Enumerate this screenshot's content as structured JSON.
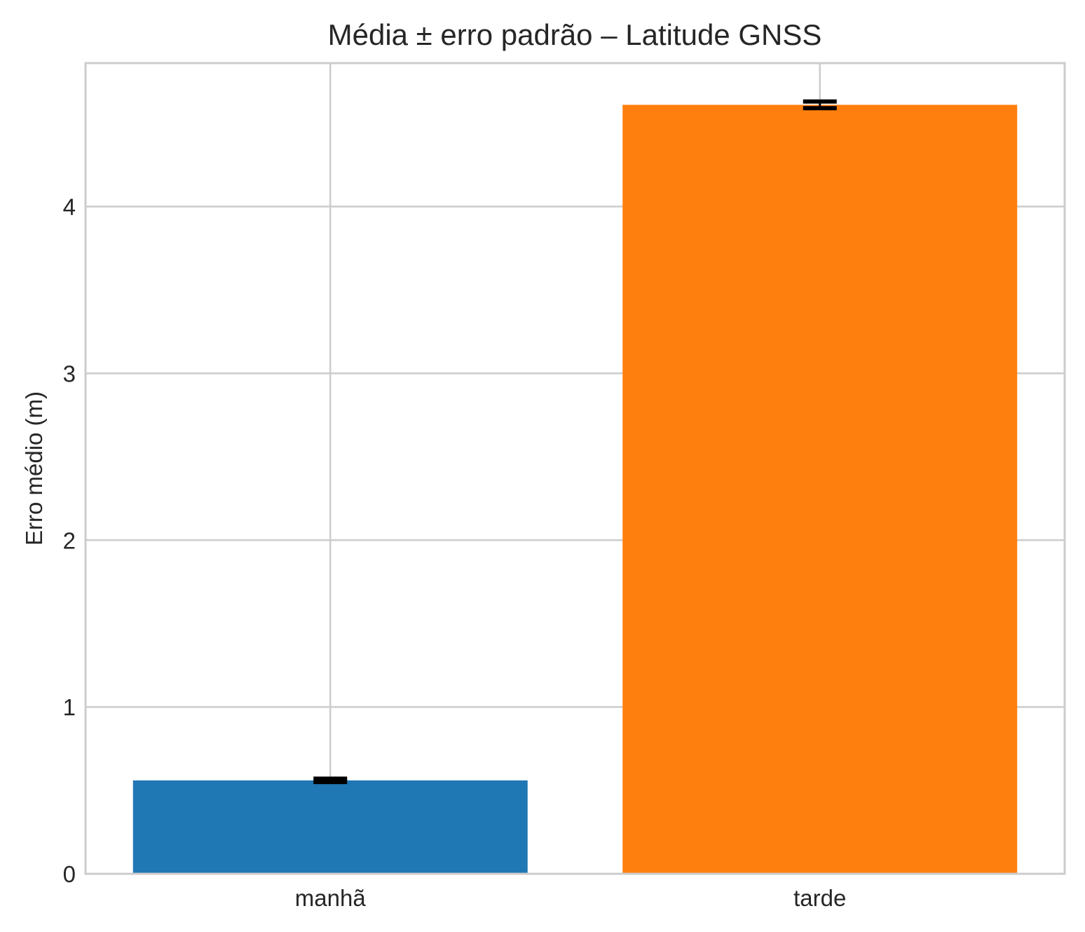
{
  "chart_data": {
    "type": "bar",
    "title": "Média ± erro padrão – Latitude GNSS",
    "xlabel": "",
    "ylabel": "Erro médio (m)",
    "categories": [
      "manhã",
      "tarde"
    ],
    "values": [
      0.56,
      4.61
    ],
    "errors": [
      0.01,
      0.02
    ],
    "colors": [
      "#1f77b4",
      "#ff7f0e"
    ],
    "ylim": [
      0,
      4.86
    ],
    "yticks": [
      0,
      1,
      2,
      3,
      4
    ],
    "grid": true,
    "legend": "none"
  }
}
